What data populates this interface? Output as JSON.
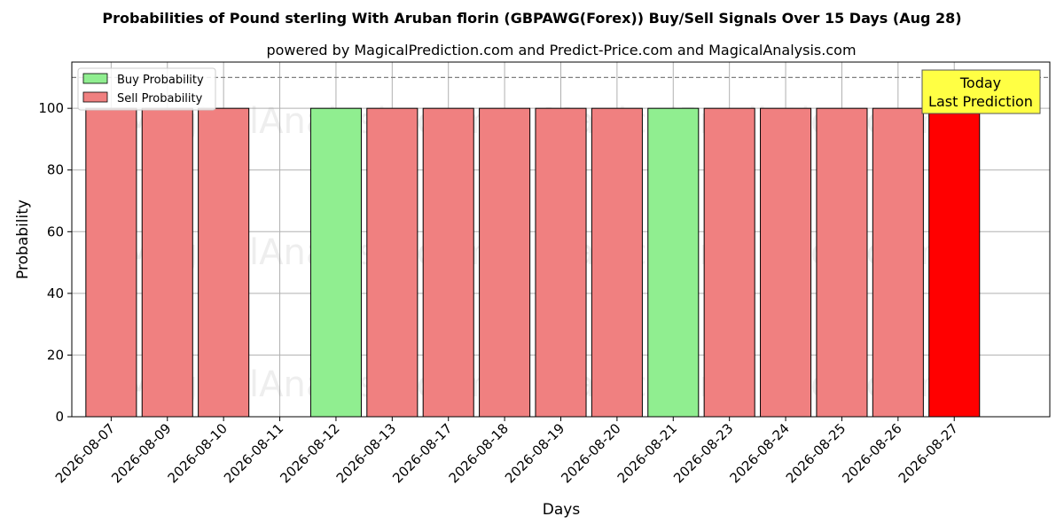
{
  "chart_data": {
    "type": "bar",
    "title": "Probabilities of Pound sterling With Aruban florin (GBPAWG(Forex)) Buy/Sell Signals Over 15 Days (Aug 28)",
    "subtitle": "powered by MagicalPrediction.com and Predict-Price.com and MagicalAnalysis.com",
    "xlabel": "Days",
    "ylabel": "Probability",
    "ylim": [
      0,
      115
    ],
    "yticks": [
      0,
      20,
      40,
      60,
      80,
      100
    ],
    "reference_line": 110,
    "grid": true,
    "legend_position": "top-left",
    "categories": [
      "2026-08-07",
      "2026-08-09",
      "2026-08-10",
      "2026-08-11",
      "2026-08-12",
      "2026-08-13",
      "2026-08-17",
      "2026-08-18",
      "2026-08-19",
      "2026-08-20",
      "2026-08-21",
      "2026-08-23",
      "2026-08-24",
      "2026-08-25",
      "2026-08-26",
      "2026-08-27"
    ],
    "series": [
      {
        "name": "Buy Probability",
        "color": "#90ee90",
        "values": [
          0,
          0,
          0,
          0,
          100,
          0,
          0,
          0,
          0,
          0,
          100,
          0,
          0,
          0,
          0,
          0
        ]
      },
      {
        "name": "Sell Probability",
        "color": "#f08080",
        "values": [
          100,
          100,
          100,
          0,
          0,
          100,
          100,
          100,
          100,
          100,
          0,
          100,
          100,
          100,
          100,
          100
        ]
      }
    ],
    "highlight": {
      "category": "2026-08-27",
      "color": "#ff0000",
      "label_line1": "Today",
      "label_line2": "Last Prediction",
      "label_color": "#ffff44"
    }
  },
  "watermarks": [
    "MagicalAnalysis.com",
    "MagicalPrediction.com"
  ]
}
